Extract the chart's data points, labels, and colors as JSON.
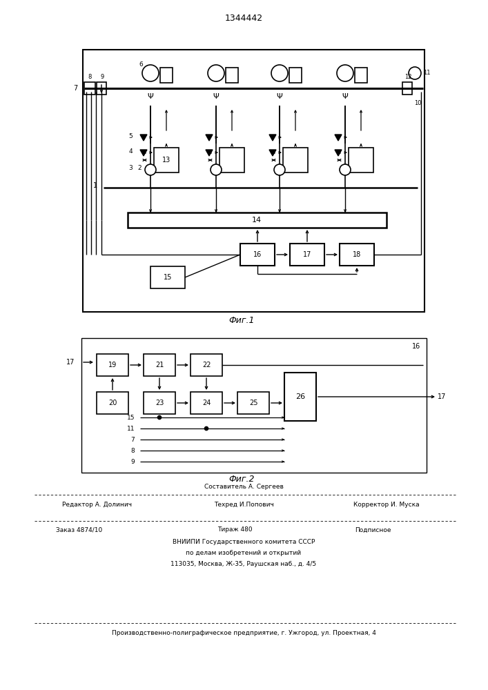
{
  "title": "1344442",
  "fig1_label": "Фиг.1",
  "fig2_label": "Фиг.2",
  "bg_color": "#ffffff",
  "line_color": "#000000"
}
